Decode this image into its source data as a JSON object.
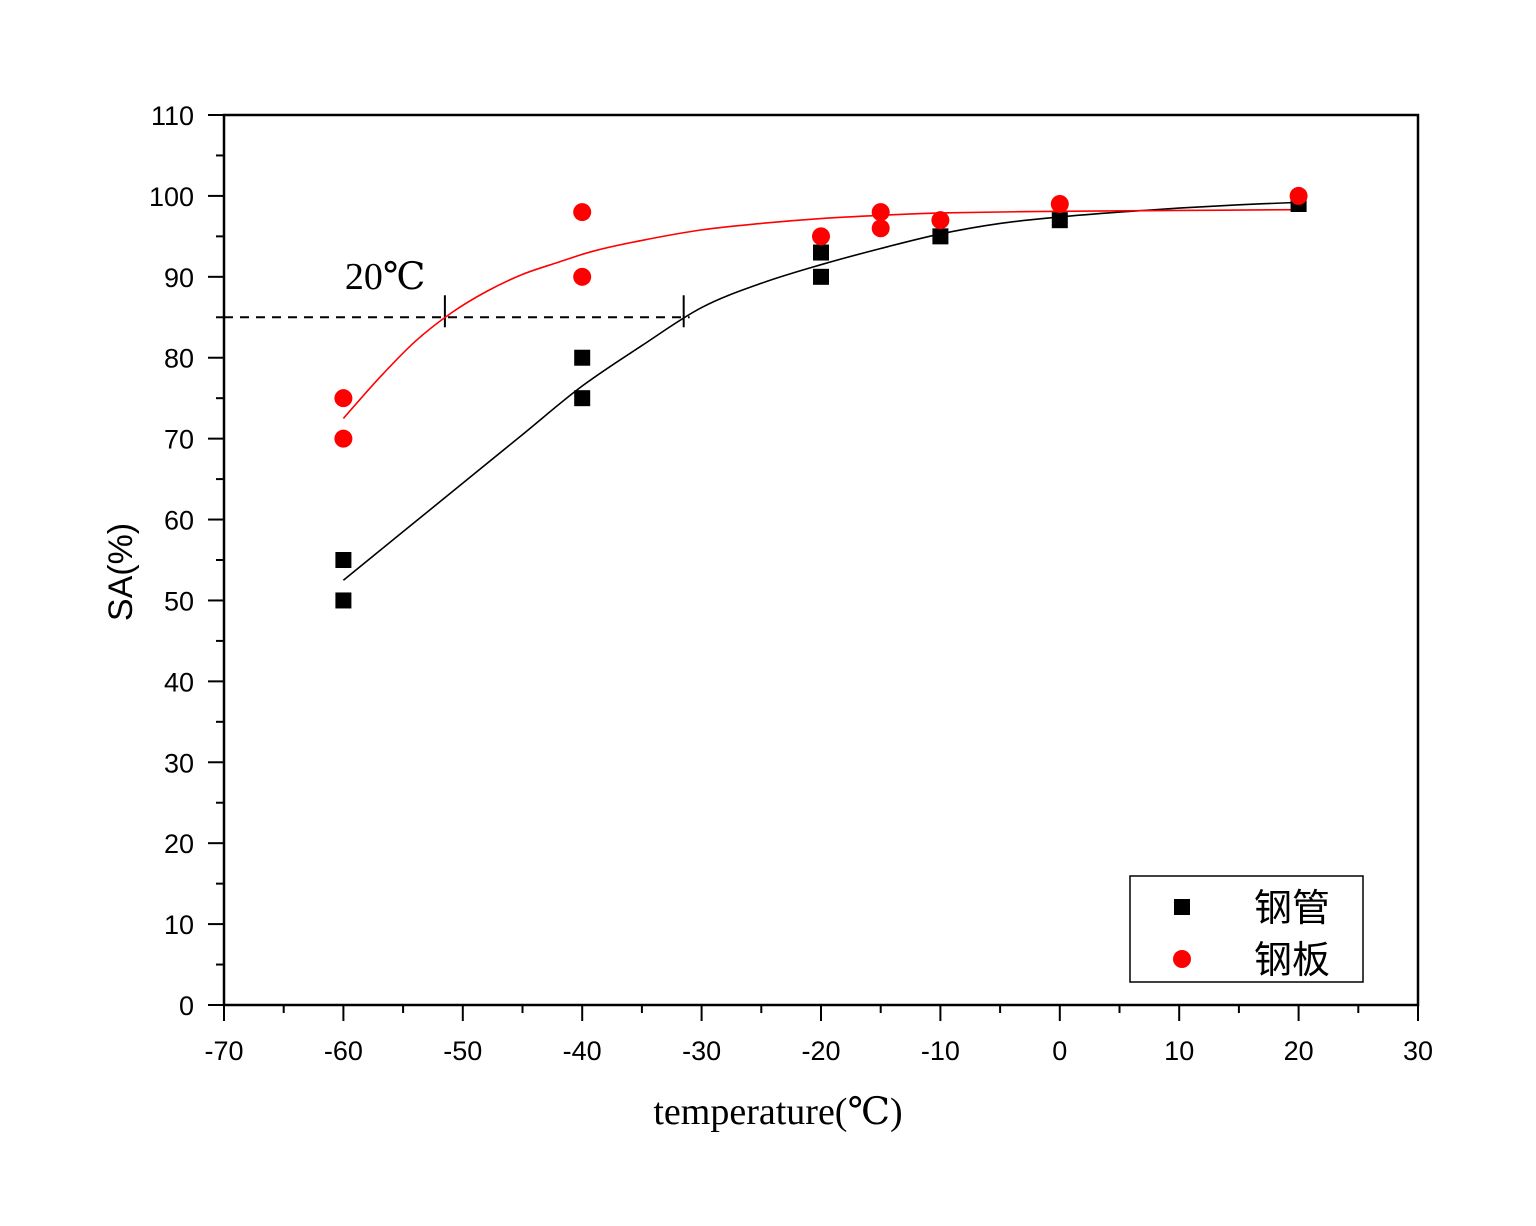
{
  "chart_data": {
    "type": "scatter",
    "title": "",
    "xlabel": "temperature(℃)",
    "ylabel": "SA(%)",
    "xlim": [
      -70,
      30
    ],
    "ylim": [
      0,
      110
    ],
    "x_ticks": [
      -70,
      -60,
      -50,
      -40,
      -30,
      -20,
      -10,
      0,
      10,
      20,
      30
    ],
    "y_ticks": [
      0,
      10,
      20,
      30,
      40,
      50,
      60,
      70,
      80,
      90,
      100,
      110
    ],
    "x_tick_labels": [
      "-70",
      "-60",
      "-50",
      "-40",
      "-30",
      "-20",
      "-10",
      "0",
      "10",
      "20",
      "30"
    ],
    "y_tick_labels": [
      "0",
      "10",
      "20",
      "30",
      "40",
      "50",
      "60",
      "70",
      "80",
      "90",
      "100",
      "110"
    ],
    "grid": false,
    "legend_position": "bottom-right",
    "series": [
      {
        "name": "钢管",
        "marker": "square",
        "color": "#000000",
        "points": [
          [
            -60,
            55
          ],
          [
            -60,
            50
          ],
          [
            -40,
            80
          ],
          [
            -40,
            75
          ],
          [
            -20,
            93
          ],
          [
            -20,
            90
          ],
          [
            -10,
            95
          ],
          [
            0,
            97
          ],
          [
            20,
            99
          ]
        ],
        "fit_curve": [
          [
            -60,
            52.5
          ],
          [
            -55,
            58.5
          ],
          [
            -50,
            64.5
          ],
          [
            -45,
            70.5
          ],
          [
            -40,
            76.5
          ],
          [
            -35,
            81.5
          ],
          [
            -30,
            86.2
          ],
          [
            -25,
            89.2
          ],
          [
            -20,
            91.5
          ],
          [
            -15,
            93.5
          ],
          [
            -10,
            95.3
          ],
          [
            -5,
            96.6
          ],
          [
            0,
            97.4
          ],
          [
            5,
            98
          ],
          [
            10,
            98.5
          ],
          [
            15,
            98.9
          ],
          [
            20,
            99.2
          ]
        ]
      },
      {
        "name": "钢板",
        "marker": "circle",
        "color": "#ff0000",
        "points": [
          [
            -60,
            75
          ],
          [
            -60,
            70
          ],
          [
            -40,
            98
          ],
          [
            -40,
            90
          ],
          [
            -20,
            95
          ],
          [
            -15,
            98
          ],
          [
            -15,
            96
          ],
          [
            -10,
            97
          ],
          [
            0,
            99
          ],
          [
            20,
            100
          ]
        ],
        "fit_curve": [
          [
            -60,
            72.5
          ],
          [
            -57,
            77.5
          ],
          [
            -54,
            82
          ],
          [
            -51,
            85.5
          ],
          [
            -48,
            88.2
          ],
          [
            -45,
            90.3
          ],
          [
            -42,
            91.8
          ],
          [
            -39,
            93.2
          ],
          [
            -35,
            94.5
          ],
          [
            -30,
            95.8
          ],
          [
            -25,
            96.6
          ],
          [
            -20,
            97.2
          ],
          [
            -15,
            97.6
          ],
          [
            -10,
            97.9
          ],
          [
            0,
            98.1
          ],
          [
            10,
            98.2
          ],
          [
            20,
            98.3
          ]
        ]
      }
    ],
    "reference_line": {
      "y": 85,
      "x_start": -70,
      "x_end": -31,
      "style": "dashed"
    },
    "reference_marks": [
      {
        "x": -51.5,
        "y": 85
      },
      {
        "x": -31.5,
        "y": 85
      }
    ],
    "annotations": [
      {
        "text": "20℃",
        "x": -56.5,
        "y": 88.5
      }
    ]
  }
}
